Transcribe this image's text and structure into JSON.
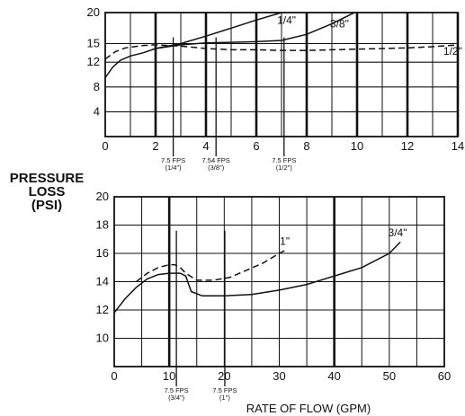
{
  "figure": {
    "ylabel_lines": [
      "PRESSURE",
      "LOSS",
      "(PSI)"
    ],
    "xlabel": "RATE OF FLOW (GPM)"
  },
  "chart_data": [
    {
      "type": "line",
      "panel": "upper",
      "xlim": [
        0,
        14
      ],
      "ylim": [
        0,
        20
      ],
      "x_ticks": [
        "0",
        "2",
        "4",
        "6",
        "8",
        "10",
        "12",
        "14"
      ],
      "y_ticks": [
        "4",
        "8",
        "12",
        "15",
        "20"
      ],
      "grid": true,
      "series": [
        {
          "name": "1/4\"",
          "style": "solid",
          "points": [
            [
              0,
              9.5
            ],
            [
              0.3,
              11.2
            ],
            [
              0.6,
              12.3
            ],
            [
              1,
              13
            ],
            [
              1.5,
              13.5
            ],
            [
              2,
              14.2
            ],
            [
              3,
              15
            ],
            [
              4,
              16.2
            ],
            [
              5,
              17.5
            ],
            [
              6,
              18.8
            ],
            [
              7,
              20
            ]
          ]
        },
        {
          "name": "3/8\"",
          "style": "solid",
          "points": [
            [
              2,
              14.2
            ],
            [
              3,
              14.8
            ],
            [
              4,
              15.1
            ],
            [
              5,
              15.2
            ],
            [
              6,
              15.3
            ],
            [
              7,
              15.5
            ],
            [
              8,
              16.5
            ],
            [
              9,
              18.2
            ],
            [
              9.9,
              20
            ]
          ]
        },
        {
          "name": "1/2\"",
          "style": "dashed",
          "points": [
            [
              0,
              12.5
            ],
            [
              0.4,
              13.7
            ],
            [
              0.8,
              14.3
            ],
            [
              1.5,
              14.7
            ],
            [
              2,
              14.8
            ],
            [
              3,
              14.6
            ],
            [
              4,
              14.2
            ],
            [
              5,
              14
            ],
            [
              6,
              14
            ],
            [
              7,
              13.9
            ],
            [
              8,
              13.9
            ],
            [
              9,
              14
            ],
            [
              10,
              14.1
            ],
            [
              11,
              14.2
            ],
            [
              12,
              14.3
            ],
            [
              13,
              14.5
            ],
            [
              14,
              14.8
            ]
          ]
        }
      ],
      "annotations": [
        {
          "lines": [
            "7.5 FPS",
            "(1/4\")"
          ],
          "x": 2.7
        },
        {
          "lines": [
            "7.54 FPS",
            "(3/8\")"
          ],
          "x": 4.4
        },
        {
          "lines": [
            "7.5 FPS",
            "(1/2\")"
          ],
          "x": 7.1
        }
      ]
    },
    {
      "type": "line",
      "panel": "lower",
      "xlim": [
        0,
        60
      ],
      "ylim": [
        8,
        20
      ],
      "x_ticks": [
        "0",
        "10",
        "20",
        "30",
        "40",
        "50",
        "60"
      ],
      "y_ticks": [
        "10",
        "12",
        "14",
        "16",
        "18",
        "20"
      ],
      "grid": true,
      "series": [
        {
          "name": "1\"",
          "style": "solid",
          "points": [
            [
              0,
              11.8
            ],
            [
              2,
              12.8
            ],
            [
              4,
              13.6
            ],
            [
              6,
              14.2
            ],
            [
              8,
              14.5
            ],
            [
              10,
              14.6
            ],
            [
              12,
              14.6
            ],
            [
              13,
              14.4
            ],
            [
              14,
              13.3
            ],
            [
              16,
              13
            ],
            [
              20,
              13
            ],
            [
              25,
              13.1
            ],
            [
              30,
              13.4
            ],
            [
              35,
              13.8
            ],
            [
              40,
              14.4
            ],
            [
              45,
              15
            ],
            [
              50,
              16
            ],
            [
              52,
              16.8
            ]
          ]
        },
        {
          "name": "3/4\"",
          "style": "dashed",
          "points": [
            [
              4,
              14
            ],
            [
              6,
              14.6
            ],
            [
              8,
              15
            ],
            [
              10,
              15.2
            ],
            [
              11,
              15.2
            ],
            [
              12,
              15
            ],
            [
              13,
              14.6
            ],
            [
              15,
              14.1
            ],
            [
              18,
              14.1
            ],
            [
              21,
              14.3
            ],
            [
              24,
              14.8
            ],
            [
              27,
              15.3
            ],
            [
              30,
              16
            ],
            [
              31,
              16.2
            ]
          ]
        }
      ],
      "annotations": [
        {
          "lines": [
            "7.5 FPS",
            "(3/4\")"
          ],
          "x": 11.3
        },
        {
          "lines": [
            "7.5 FPS",
            "(1\")"
          ],
          "x": 20.1
        }
      ]
    }
  ]
}
